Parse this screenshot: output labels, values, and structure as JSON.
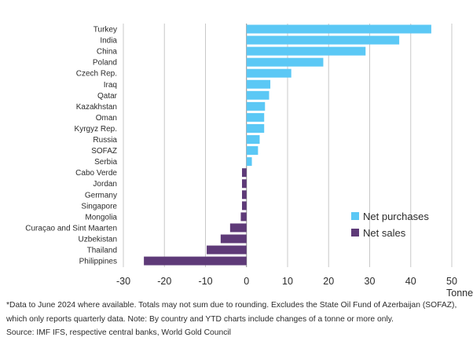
{
  "chart_data": {
    "type": "bar",
    "orientation": "horizontal",
    "categories": [
      "Turkey",
      "India",
      "China",
      "Poland",
      "Czech Rep.",
      "Iraq",
      "Qatar",
      "Kazakhstan",
      "Oman",
      "Kyrgyz Rep.",
      "Russia",
      "SOFAZ",
      "Serbia",
      "Cabo Verde",
      "Jordan",
      "Germany",
      "Singapore",
      "Mongolia",
      "Curaçao and Sint Maarten",
      "Uzbekistan",
      "Thailand",
      "Philippines"
    ],
    "values": [
      45.0,
      37.2,
      29.0,
      18.7,
      10.9,
      5.8,
      5.5,
      4.5,
      4.3,
      4.3,
      3.2,
      2.8,
      1.3,
      -1.1,
      -1.1,
      -1.1,
      -1.1,
      -1.4,
      -4.0,
      -6.3,
      -9.7,
      -25.0
    ],
    "xlim": [
      -30,
      50
    ],
    "xticks": [
      -30,
      -20,
      -10,
      0,
      10,
      20,
      30,
      40,
      50
    ],
    "xunit": "Tonnes",
    "grid": "vertical",
    "legend_placement": "bottom-right",
    "series": [
      {
        "name": "Net purchases",
        "color": "#5bc8f5"
      },
      {
        "name": "Net sales",
        "color": "#5e3a78"
      }
    ]
  },
  "footnotes": [
    "*Data to June 2024 where available. Totals may not sum due to rounding. Excludes the State Oil Fund of Azerbaijan (SOFAZ), which only reports quarterly data. Note: By country and YTD charts include changes of a tonne or more only.",
    "Source: IMF IFS, respective central banks, World Gold Council"
  ]
}
